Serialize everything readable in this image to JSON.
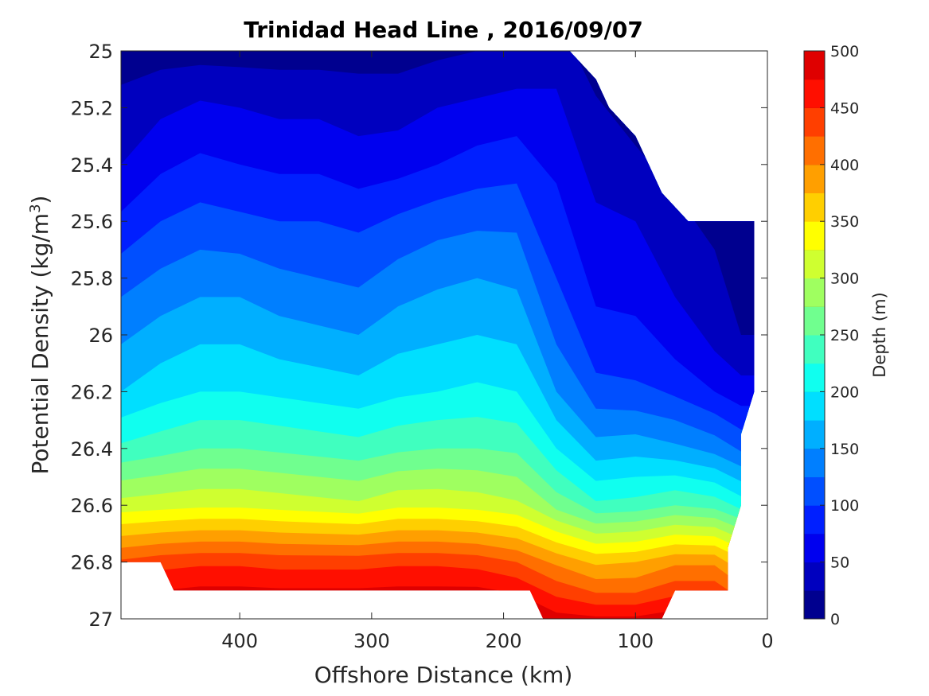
{
  "chart_data": {
    "type": "contour",
    "title": "Trinidad Head Line , 2016/09/07",
    "xlabel": "Offshore Distance (km)",
    "ylabel_main": "Potential Density (kg/m",
    "ylabel_sup": "3",
    "ylabel_close": ")",
    "colorbar_label": "Depth (m)",
    "xlim": [
      490,
      0
    ],
    "ylim": [
      27,
      25
    ],
    "x_ticks": [
      "400",
      "300",
      "200",
      "100",
      "0"
    ],
    "x_tick_values": [
      400,
      300,
      200,
      100,
      0
    ],
    "y_ticks": [
      "25",
      "25.2",
      "25.4",
      "25.6",
      "25.8",
      "26",
      "26.2",
      "26.4",
      "26.6",
      "26.8",
      "27"
    ],
    "y_tick_values": [
      25,
      25.2,
      25.4,
      25.6,
      25.8,
      26,
      26.2,
      26.4,
      26.6,
      26.8,
      27
    ],
    "colorbar_ticks": [
      "0",
      "50",
      "100",
      "150",
      "200",
      "250",
      "300",
      "350",
      "400",
      "450",
      "500"
    ],
    "colorbar_tick_values": [
      0,
      50,
      100,
      150,
      200,
      250,
      300,
      350,
      400,
      450,
      500
    ],
    "contour_levels": [
      0,
      25,
      50,
      75,
      100,
      125,
      150,
      175,
      200,
      225,
      250,
      275,
      300,
      325,
      350,
      375,
      400,
      425,
      450,
      475,
      500
    ],
    "colormap": "jet",
    "level_colors": [
      "#00008F",
      "#0000BF",
      "#0000EF",
      "#001FFF",
      "#004FFF",
      "#007FFF",
      "#00AFFF",
      "#00DFFF",
      "#10FFEF",
      "#40FFBF",
      "#70FF8F",
      "#9FFF60",
      "#CFFF30",
      "#FFFF00",
      "#FFCF00",
      "#FF9F00",
      "#FF6F00",
      "#FF3F00",
      "#FF0F00",
      "#DF0000",
      "#AF0000"
    ],
    "distance_km": [
      490,
      460,
      430,
      400,
      370,
      340,
      310,
      280,
      250,
      220,
      190,
      160,
      130,
      100,
      70,
      40,
      20
    ],
    "isopycnal_depth_rows": [
      {
        "density": 25.0,
        "depth_m": [
          10,
          15,
          15,
          15,
          15,
          15,
          15,
          15,
          20,
          25,
          30,
          40,
          null,
          null,
          null,
          null,
          null
        ]
      },
      {
        "density": 25.2,
        "depth_m": [
          35,
          45,
          55,
          50,
          45,
          45,
          40,
          40,
          50,
          55,
          60,
          55,
          30,
          15,
          null,
          null,
          null
        ]
      },
      {
        "density": 25.4,
        "depth_m": [
          50,
          70,
          80,
          75,
          70,
          70,
          60,
          65,
          75,
          85,
          90,
          70,
          40,
          30,
          20,
          null,
          null
        ]
      },
      {
        "density": 25.6,
        "depth_m": [
          80,
          100,
          110,
          105,
          100,
          100,
          95,
          105,
          115,
          120,
          120,
          85,
          55,
          50,
          30,
          20,
          10
        ]
      },
      {
        "density": 25.8,
        "depth_m": [
          115,
          130,
          140,
          140,
          130,
          125,
          120,
          135,
          145,
          150,
          145,
          100,
          70,
          65,
          45,
          30,
          20
        ]
      },
      {
        "density": 26.0,
        "depth_m": [
          145,
          160,
          170,
          170,
          160,
          155,
          150,
          165,
          170,
          175,
          170,
          120,
          80,
          80,
          60,
          40,
          25
        ]
      },
      {
        "density": 26.2,
        "depth_m": [
          175,
          190,
          200,
          200,
          195,
          190,
          185,
          195,
          200,
          205,
          200,
          150,
          110,
          105,
          95,
          75,
          60
        ]
      },
      {
        "density": 26.4,
        "depth_m": [
          230,
          240,
          250,
          250,
          245,
          240,
          235,
          245,
          250,
          250,
          245,
          200,
          160,
          165,
          155,
          140,
          120
        ]
      },
      {
        "density": 26.6,
        "depth_m": [
          310,
          315,
          320,
          320,
          315,
          310,
          305,
          320,
          320,
          315,
          305,
          265,
          230,
          235,
          250,
          240,
          215
        ]
      },
      {
        "density": 26.8,
        "depth_m": [
          430,
          440,
          445,
          445,
          440,
          440,
          440,
          445,
          445,
          440,
          425,
          395,
          370,
          375,
          395,
          395,
          360
        ]
      },
      {
        "density": 26.9,
        "depth_m": [
          null,
          475,
          480,
          480,
          478,
          478,
          478,
          480,
          480,
          480,
          470,
          440,
          420,
          420,
          440,
          440,
          null
        ]
      },
      {
        "density": 27.0,
        "depth_m": [
          null,
          null,
          null,
          null,
          null,
          null,
          null,
          null,
          null,
          null,
          null,
          485,
          480,
          480,
          490,
          null,
          null
        ]
      }
    ]
  }
}
